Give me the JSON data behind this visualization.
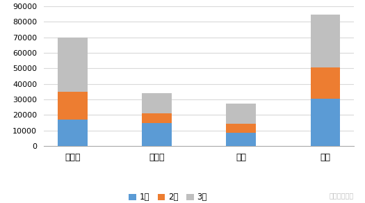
{
  "categories": [
    "特斯拉",
    "比亚迪",
    "长城",
    "五菱"
  ],
  "jan_values": [
    17000,
    15000,
    8500,
    30500
  ],
  "feb_values": [
    18000,
    6000,
    6000,
    20000
  ],
  "mar_values": [
    35000,
    13000,
    13000,
    34000
  ],
  "colors": [
    "#5b9bd5",
    "#ed7d31",
    "#bfbfbf"
  ],
  "legend_labels": [
    "1月",
    "2月",
    "3月"
  ],
  "ylim": [
    0,
    90000
  ],
  "yticks": [
    0,
    10000,
    20000,
    30000,
    40000,
    50000,
    60000,
    70000,
    80000,
    90000
  ],
  "bg_color": "#ffffff",
  "grid_color": "#d9d9d9",
  "bar_width": 0.35,
  "watermark_text": "汽车电子设计"
}
